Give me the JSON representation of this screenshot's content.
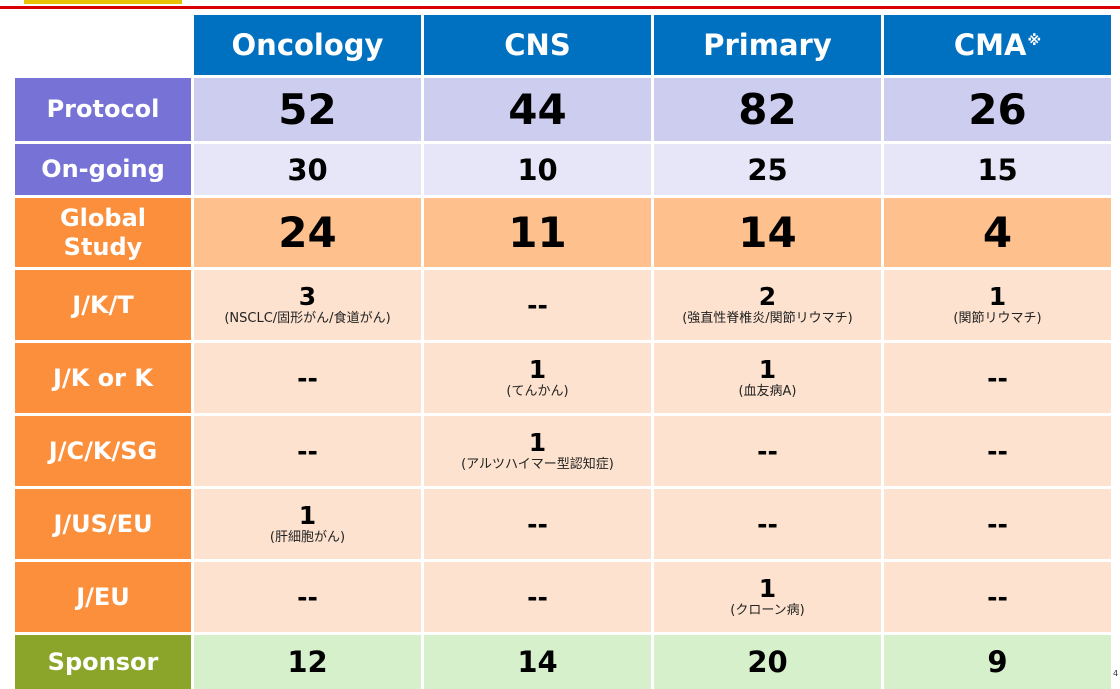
{
  "columns": [
    "Oncology",
    "CNS",
    "Primary",
    "CMA"
  ],
  "cma_mark": "※",
  "rows": {
    "protocol": {
      "label": "Protocol",
      "values": [
        "52",
        "44",
        "82",
        "26"
      ]
    },
    "ongoing": {
      "label": "On-going",
      "values": [
        "30",
        "10",
        "25",
        "15"
      ]
    },
    "global": {
      "label_line1": "Global",
      "label_line2": "Study",
      "values": [
        "24",
        "11",
        "14",
        "4"
      ]
    },
    "jkt": {
      "label": "J/K/T",
      "cells": [
        {
          "value": "3",
          "note": "(NSCLC/固形がん/食道がん)"
        },
        {
          "value": "--",
          "note": ""
        },
        {
          "value": "2",
          "note": "(強直性脊椎炎/関節リウマチ)"
        },
        {
          "value": "1",
          "note": "(関節リウマチ)"
        }
      ]
    },
    "jk": {
      "label": "J/K or K",
      "cells": [
        {
          "value": "--",
          "note": ""
        },
        {
          "value": "1",
          "note": "(てんかん)"
        },
        {
          "value": "1",
          "note": "(血友病A)"
        },
        {
          "value": "--",
          "note": ""
        }
      ]
    },
    "jcksg": {
      "label": "J/C/K/SG",
      "cells": [
        {
          "value": "--",
          "note": ""
        },
        {
          "value": "1",
          "note": "(アルツハイマー型認知症)"
        },
        {
          "value": "--",
          "note": ""
        },
        {
          "value": "--",
          "note": ""
        }
      ]
    },
    "juseu": {
      "label": "J/US/EU",
      "cells": [
        {
          "value": "1",
          "note": "(肝細胞がん)"
        },
        {
          "value": "--",
          "note": ""
        },
        {
          "value": "--",
          "note": ""
        },
        {
          "value": "--",
          "note": ""
        }
      ]
    },
    "jeu": {
      "label": "J/EU",
      "cells": [
        {
          "value": "--",
          "note": ""
        },
        {
          "value": "--",
          "note": ""
        },
        {
          "value": "1",
          "note": "(クローン病)"
        },
        {
          "value": "--",
          "note": ""
        }
      ]
    },
    "sponsor": {
      "label": "Sponsor",
      "values": [
        "12",
        "14",
        "20",
        "9"
      ]
    }
  },
  "page_mark": "4",
  "colors": {
    "header_blue": "#0070c0",
    "label_purple": "#7773d6",
    "label_orange": "#fb8f3c",
    "label_green": "#8aa529",
    "top_rule_red": "#d80000",
    "top_accent_yellow": "#e8c200"
  }
}
